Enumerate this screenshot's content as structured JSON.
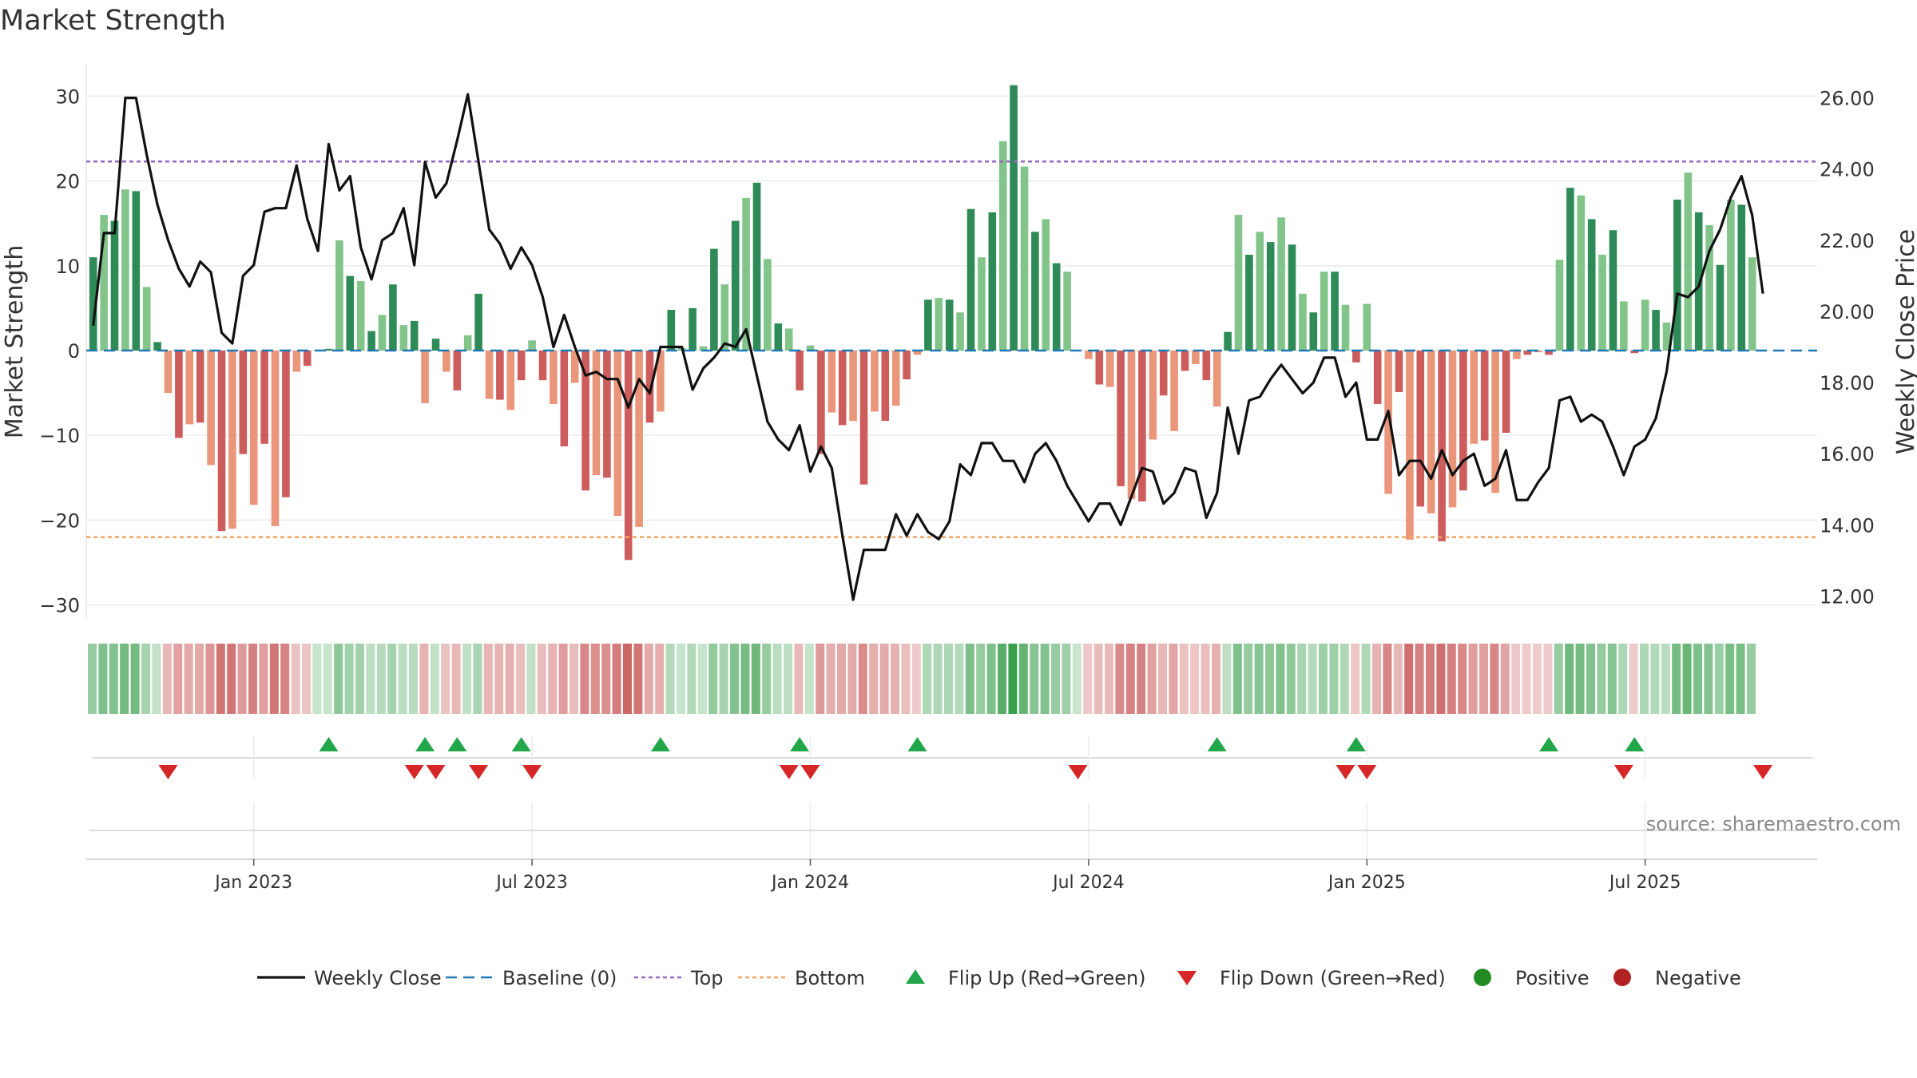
{
  "title": "Market Strength",
  "source": "source: sharemaestro.com",
  "colors": {
    "pos_dark": "#2e8b57",
    "pos_light": "#82c48a",
    "neg_dark": "#cd5c5c",
    "neg_light": "#e9967a",
    "close": "#111111",
    "baseline": "#1f77b4",
    "top": "#9467bd",
    "bottom": "#f4a460",
    "flip_up": "#22a64a",
    "flip_down": "#d62728",
    "positive": "#228b22",
    "negative": "#b22222"
  },
  "chart_data": {
    "type": "bar",
    "title": "Market Strength",
    "ylabel": "Market Strength",
    "y2label": "Weekly Close Price",
    "ylim": [
      -34,
      34
    ],
    "y2lim": [
      10.8,
      27.0
    ],
    "y_ticks": [
      "30",
      "20",
      "10",
      "0",
      "−10",
      "−20",
      "−30"
    ],
    "y_tick_values": [
      30,
      20,
      10,
      0,
      -10,
      -20,
      -30
    ],
    "y2_ticks": [
      "26.00",
      "24.00",
      "22.00",
      "20.00",
      "18.00",
      "16.00",
      "14.00",
      "12.00"
    ],
    "y2_tick_values": [
      26,
      24,
      22,
      20,
      18,
      16,
      14,
      12
    ],
    "x_ticks": [
      "Jan 2023",
      "Jul 2023",
      "Jan 2024",
      "Jul 2024",
      "Jan 2025",
      "Jul 2025"
    ],
    "x_tick_weeks": [
      15,
      41,
      67,
      93,
      119,
      145
    ],
    "top": 22.3,
    "bottom": -22.0,
    "strength": [
      11,
      16,
      15.3,
      19,
      18.8,
      7.5,
      1,
      -5,
      -10.3,
      -8.7,
      -8.5,
      -13.5,
      -21.3,
      -21,
      -12.2,
      -18.2,
      -11,
      -20.7,
      -17.3,
      -2.5,
      -1.8,
      0,
      0.2,
      13,
      8.8,
      8.2,
      2.3,
      4.2,
      7.8,
      3,
      3.5,
      -6.2,
      1.4,
      -2.5,
      -4.7,
      1.8,
      6.7,
      -5.7,
      -5.8,
      -7,
      -3.5,
      1.2,
      -3.5,
      -6.3,
      -11.3,
      -3.8,
      -16.5,
      -14.7,
      -15,
      -19.5,
      -24.7,
      -20.8,
      -8.5,
      -7.2,
      4.8,
      0.3,
      5,
      0.5,
      12,
      7.8,
      15.3,
      18,
      19.8,
      10.8,
      3.2,
      2.6,
      -4.7,
      0.6,
      -12.2,
      -7.3,
      -8.8,
      -8.3,
      -15.8,
      -7.2,
      -8.3,
      -6.5,
      -3.4,
      -0.5,
      6,
      6.2,
      6,
      4.5,
      16.7,
      11,
      16.3,
      24.7,
      31.3,
      21.7,
      14,
      15.5,
      10.3,
      9.3,
      0,
      -1,
      -4,
      -4.3,
      -16,
      -17.5,
      -17.8,
      -10.5,
      -5.3,
      -9.5,
      -2.4,
      -1.6,
      -3.5,
      -6.6,
      2.2,
      16,
      11.3,
      14,
      12.8,
      15.7,
      12.5,
      6.7,
      4.5,
      9.3,
      9.3,
      5.4,
      -1.4,
      5.5,
      -6.3,
      -16.9,
      -4.9,
      -22.3,
      -18.4,
      -19.2,
      -22.5,
      -18.5,
      -16.5,
      -11,
      -10.6,
      -16.8,
      -9.7,
      -1,
      -0.5,
      -0.2,
      -0.5,
      10.7,
      19.2,
      18.3,
      15.5,
      11.3,
      14.2,
      5.8,
      -0.3,
      6,
      4.8,
      3.3,
      17.8,
      21,
      16.3,
      14.8,
      10.1,
      17.8,
      17.2,
      11
    ],
    "weekly_close": [
      19.6,
      22.2,
      22.2,
      26.0,
      26.0,
      24.4,
      23.0,
      22.0,
      21.2,
      20.7,
      21.4,
      21.1,
      19.4,
      19.1,
      21.0,
      21.3,
      22.8,
      22.9,
      22.9,
      24.1,
      22.6,
      21.7,
      24.7,
      23.4,
      23.8,
      21.8,
      20.9,
      22.0,
      22.2,
      22.9,
      21.3,
      24.2,
      23.2,
      23.6,
      24.8,
      26.1,
      24.2,
      22.3,
      21.9,
      21.2,
      21.8,
      21.3,
      20.4,
      19.0,
      19.9,
      19.0,
      18.2,
      18.3,
      18.1,
      18.1,
      17.3,
      18.1,
      17.7,
      19.0,
      19.0,
      19.0,
      17.8,
      18.4,
      18.7,
      19.1,
      19.0,
      19.5,
      18.2,
      16.9,
      16.4,
      16.1,
      16.8,
      15.5,
      16.2,
      15.6,
      13.7,
      11.9,
      13.3,
      13.3,
      13.3,
      14.3,
      13.7,
      14.3,
      13.8,
      13.6,
      14.1,
      15.7,
      15.4,
      16.3,
      16.3,
      15.8,
      15.8,
      15.2,
      16.0,
      16.3,
      15.8,
      15.1,
      14.6,
      14.1,
      14.6,
      14.6,
      14.0,
      14.8,
      15.6,
      15.5,
      14.6,
      14.9,
      15.6,
      15.5,
      14.2,
      14.9,
      17.3,
      16.0,
      17.5,
      17.6,
      18.1,
      18.5,
      18.1,
      17.7,
      18.0,
      18.7,
      18.7,
      17.6,
      18.0,
      16.4,
      16.4,
      17.2,
      15.4,
      15.8,
      15.8,
      15.3,
      16.1,
      15.4,
      15.8,
      16.0,
      15.1,
      15.3,
      16.1,
      14.7,
      14.7,
      15.2,
      15.6,
      17.5,
      17.6,
      16.9,
      17.1,
      16.9,
      16.2,
      15.4,
      16.2,
      16.4,
      17.0,
      18.3,
      20.5,
      20.4,
      20.7,
      21.7,
      22.3,
      23.2,
      23.8,
      22.7,
      20.5
    ],
    "flip_up_weeks": [
      22,
      31,
      34,
      40,
      53,
      66,
      77,
      105,
      118,
      136,
      144
    ],
    "flip_down_weeks": [
      7,
      30,
      32,
      36,
      41,
      65,
      67,
      92,
      117,
      119,
      143,
      156
    ]
  },
  "legend": [
    {
      "label": "Weekly Close",
      "kind": "line-solid",
      "color": "#111111"
    },
    {
      "label": "Baseline (0)",
      "kind": "line-dash",
      "color": "#1f77b4"
    },
    {
      "label": "Top",
      "kind": "line-dot",
      "color": "#9467bd"
    },
    {
      "label": "Bottom",
      "kind": "line-dot",
      "color": "#f4a460"
    },
    {
      "label": "Flip Up (Red→Green)",
      "kind": "tri-up",
      "color": "#22a64a"
    },
    {
      "label": "Flip Down (Green→Red)",
      "kind": "tri-down",
      "color": "#d62728"
    },
    {
      "label": "Positive",
      "kind": "circle",
      "color": "#228b22"
    },
    {
      "label": "Negative",
      "kind": "circle",
      "color": "#b22222"
    }
  ]
}
